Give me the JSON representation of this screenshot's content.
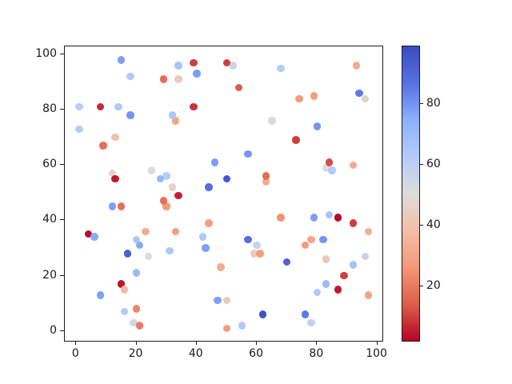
{
  "figure": {
    "background": "#ffffff",
    "title": ""
  },
  "chart_data": {
    "type": "scatter",
    "title": "",
    "xlabel": "",
    "ylabel": "",
    "grid": false,
    "x_ticks": [
      0,
      20,
      40,
      60,
      80,
      100
    ],
    "y_ticks": [
      0,
      20,
      40,
      60,
      80,
      100
    ],
    "xlim": [
      -3.8,
      101.7
    ],
    "ylim": [
      -3.55,
      102.9
    ],
    "marker_diameter_px": 9.5,
    "colormap": "coolwarm_r",
    "colorbar": {
      "position": "right",
      "vmin": 2,
      "vmax": 99,
      "ticks": [
        20,
        40,
        60,
        80
      ]
    },
    "points_format": [
      "x",
      "y",
      "color_value"
    ],
    "points": [
      [
        15,
        98,
        78
      ],
      [
        34,
        96,
        66
      ],
      [
        39,
        97,
        10
      ],
      [
        52,
        96,
        56
      ],
      [
        50,
        97,
        10
      ],
      [
        18,
        92,
        64
      ],
      [
        40,
        93,
        78
      ],
      [
        29,
        91,
        17
      ],
      [
        34,
        91,
        44
      ],
      [
        54,
        88,
        14
      ],
      [
        68,
        95,
        63
      ],
      [
        93,
        96,
        32
      ],
      [
        1,
        81,
        62
      ],
      [
        8,
        81,
        7
      ],
      [
        14,
        81,
        64
      ],
      [
        18,
        78,
        80
      ],
      [
        33,
        76,
        30
      ],
      [
        32,
        78,
        65
      ],
      [
        39,
        81,
        8
      ],
      [
        1,
        73,
        62
      ],
      [
        13,
        70,
        40
      ],
      [
        9,
        67,
        18
      ],
      [
        74,
        84,
        27
      ],
      [
        79,
        85,
        28
      ],
      [
        94,
        86,
        85
      ],
      [
        96,
        84,
        46
      ],
      [
        65,
        76,
        52
      ],
      [
        80,
        74,
        80
      ],
      [
        73,
        69,
        10
      ],
      [
        57,
        64,
        80
      ],
      [
        46,
        61,
        78
      ],
      [
        83,
        59,
        50
      ],
      [
        85,
        58,
        63
      ],
      [
        84,
        61,
        12
      ],
      [
        92,
        60,
        32
      ],
      [
        25,
        58,
        50
      ],
      [
        30,
        56,
        62
      ],
      [
        28,
        55,
        72
      ],
      [
        12,
        57,
        47
      ],
      [
        13,
        55,
        5
      ],
      [
        50,
        55,
        95
      ],
      [
        44,
        52,
        88
      ],
      [
        63,
        54,
        33
      ],
      [
        63,
        56,
        17
      ],
      [
        32,
        52,
        46
      ],
      [
        34,
        49,
        6
      ],
      [
        30,
        45,
        27
      ],
      [
        29,
        47,
        18
      ],
      [
        12,
        45,
        78
      ],
      [
        15,
        45,
        18
      ],
      [
        4,
        35,
        3
      ],
      [
        6,
        34,
        76
      ],
      [
        20,
        33,
        65
      ],
      [
        23,
        36,
        33
      ],
      [
        21,
        31,
        76
      ],
      [
        17,
        28,
        92
      ],
      [
        24,
        27,
        50
      ],
      [
        33,
        36,
        28
      ],
      [
        31,
        29,
        65
      ],
      [
        44,
        39,
        28
      ],
      [
        42,
        34,
        64
      ],
      [
        43,
        30,
        78
      ],
      [
        57,
        33,
        88
      ],
      [
        60,
        31,
        57
      ],
      [
        59,
        28,
        44
      ],
      [
        61,
        28,
        28
      ],
      [
        48,
        23,
        33
      ],
      [
        20,
        21,
        70
      ],
      [
        15,
        17,
        4
      ],
      [
        16,
        15,
        37
      ],
      [
        8,
        13,
        78
      ],
      [
        47,
        11,
        78
      ],
      [
        50,
        11,
        42
      ],
      [
        16,
        7,
        63
      ],
      [
        20,
        8,
        22
      ],
      [
        19,
        3,
        55
      ],
      [
        21,
        2,
        20
      ],
      [
        50,
        1,
        28
      ],
      [
        55,
        2,
        64
      ],
      [
        68,
        41,
        25
      ],
      [
        79,
        41,
        78
      ],
      [
        84,
        42,
        66
      ],
      [
        87,
        41,
        3
      ],
      [
        92,
        39,
        10
      ],
      [
        97,
        36,
        33
      ],
      [
        76,
        31,
        27
      ],
      [
        78,
        33,
        30
      ],
      [
        82,
        33,
        80
      ],
      [
        70,
        25,
        92
      ],
      [
        83,
        26,
        42
      ],
      [
        92,
        24,
        66
      ],
      [
        96,
        27,
        57
      ],
      [
        89,
        20,
        10
      ],
      [
        83,
        17,
        70
      ],
      [
        87,
        15,
        5
      ],
      [
        80,
        14,
        64
      ],
      [
        97,
        13,
        30
      ],
      [
        62,
        6,
        97
      ],
      [
        76,
        6,
        85
      ],
      [
        78,
        3,
        58
      ]
    ]
  }
}
